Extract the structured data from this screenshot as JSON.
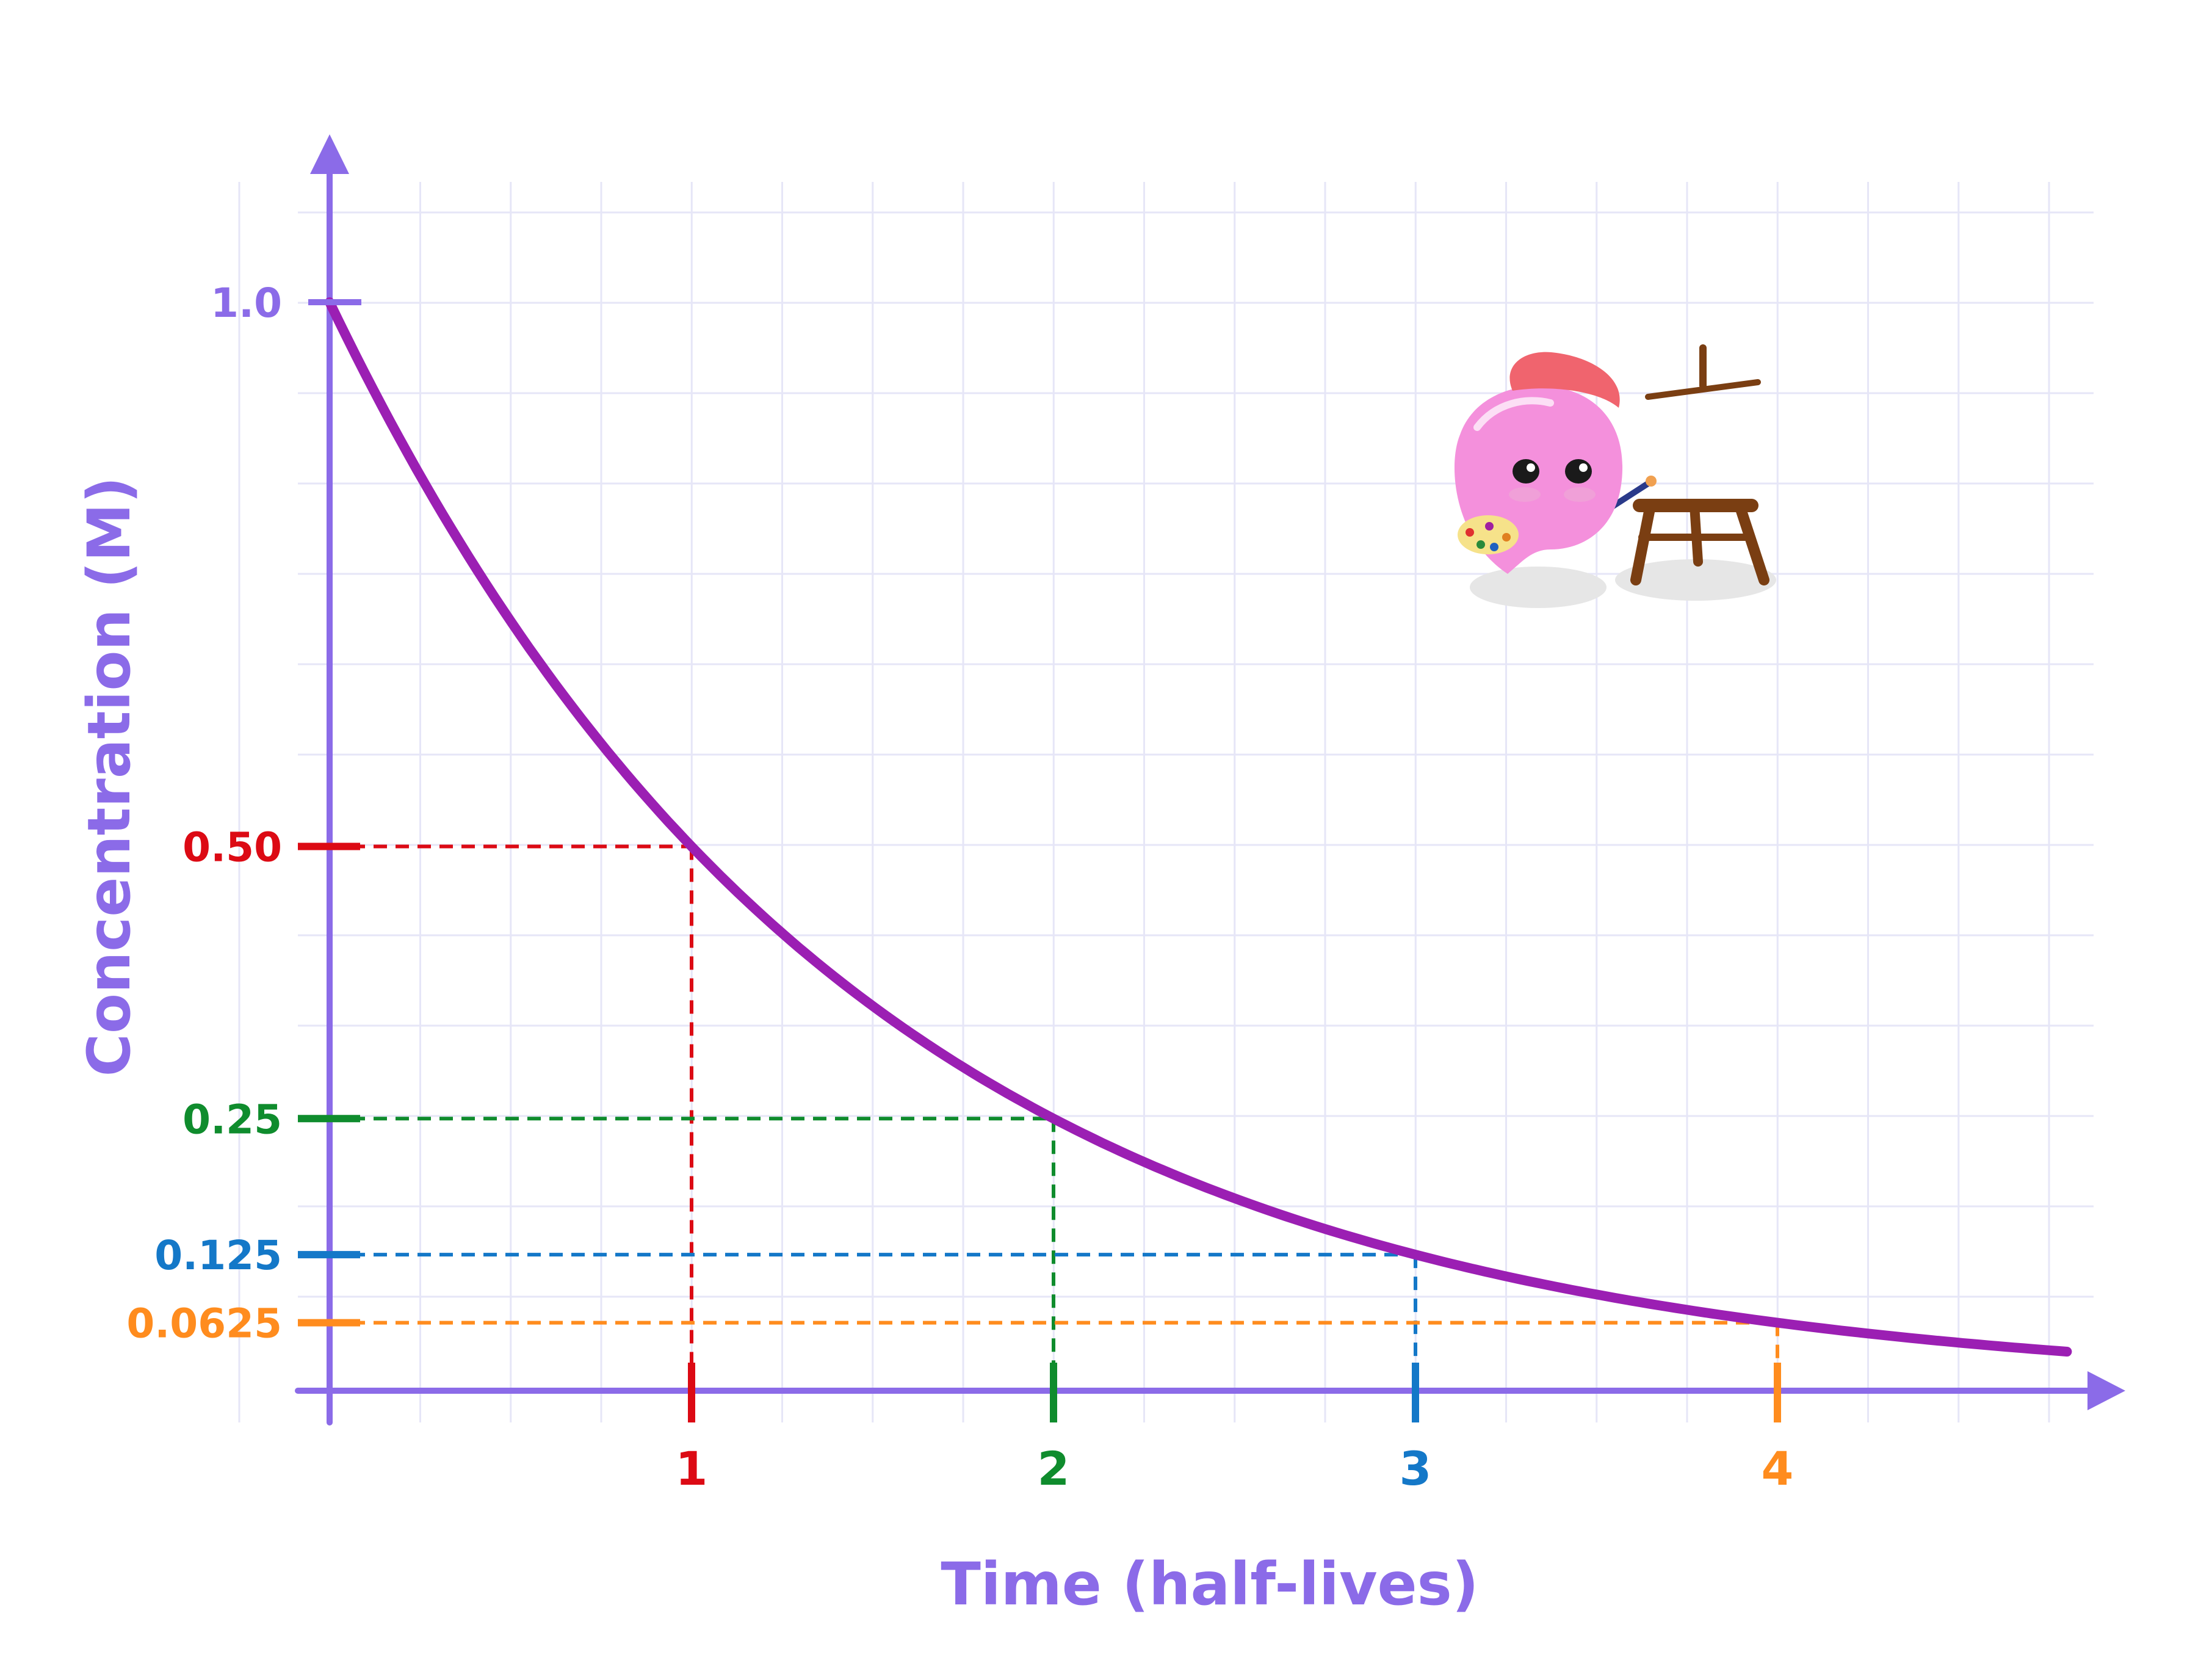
{
  "chart_data": {
    "type": "line",
    "title": "",
    "xlabel": "Time (half-lives)",
    "ylabel": "Concentration (M)",
    "xlim": [
      0,
      4.8
    ],
    "ylim": [
      0,
      1.0
    ],
    "grid": true,
    "legend": "none",
    "series": [
      {
        "x": [
          0,
          0.5,
          1,
          1.5,
          2,
          2.5,
          3,
          3.5,
          4,
          4.8
        ],
        "values": [
          1.0,
          0.707,
          0.5,
          0.354,
          0.25,
          0.177,
          0.125,
          0.088,
          0.0625,
          0.045
        ],
        "color": "#9b1fb3"
      }
    ],
    "markers": [
      {
        "x": 1,
        "y": 0.5,
        "y_label": "0.50",
        "x_label": "1",
        "color": "#dc0a14"
      },
      {
        "x": 2,
        "y": 0.25,
        "y_label": "0.25",
        "x_label": "2",
        "color": "#0f8c2d"
      },
      {
        "x": 3,
        "y": 0.125,
        "y_label": "0.125",
        "x_label": "3",
        "color": "#1478c8"
      },
      {
        "x": 4,
        "y": 0.0625,
        "y_label": "0.0625",
        "x_label": "4",
        "color": "#ff8c1e"
      }
    ],
    "top_tick": {
      "y": 1.0,
      "label": "1.0"
    },
    "colors": {
      "axis": "#8b6be8",
      "grid": "#e6e6f7",
      "curve": "#9b1fb3"
    }
  },
  "mascot": {
    "name": "painter-blob-mascot"
  }
}
